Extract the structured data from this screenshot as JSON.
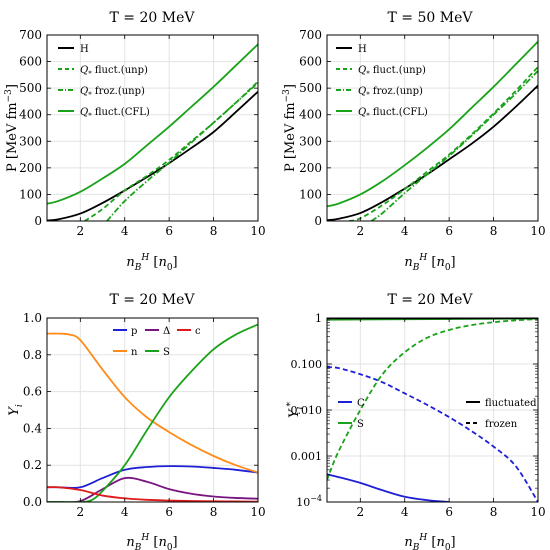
{
  "chart_data": [
    {
      "type": "line",
      "title": "T = 20 MeV",
      "xlabel": "n_B^H [n_0]",
      "ylabel": "P [MeV fm^-3]",
      "xlim": [
        0.5,
        10
      ],
      "ylim": [
        0,
        700
      ],
      "xticks": [
        2,
        4,
        6,
        8,
        10
      ],
      "yticks": [
        0,
        100,
        200,
        300,
        400,
        500,
        600,
        700
      ],
      "legend": "top-left",
      "grid": true,
      "series": [
        {
          "name": "H",
          "color": "#000000",
          "dash": "solid",
          "x": [
            0.5,
            1,
            2,
            3,
            4,
            5,
            6,
            7,
            8,
            9,
            10
          ],
          "y": [
            2,
            6,
            28,
            68,
            115,
            165,
            218,
            275,
            335,
            410,
            487
          ]
        },
        {
          "name": "Q fluct.(unp)",
          "color": "#1aa21a",
          "dash": "dash",
          "x": [
            2.2,
            3,
            4,
            5,
            6,
            7,
            8,
            9,
            10
          ],
          "y": [
            0,
            45,
            115,
            170,
            230,
            300,
            370,
            445,
            525
          ]
        },
        {
          "name": "Q froz.(unp)",
          "color": "#1aa21a",
          "dash": "dashdot",
          "x": [
            3.2,
            4,
            5,
            6,
            7,
            8,
            9,
            10
          ],
          "y": [
            0,
            75,
            150,
            220,
            295,
            370,
            445,
            520
          ]
        },
        {
          "name": "Q fluct.(CFL)",
          "color": "#1aa21a",
          "dash": "solid",
          "x": [
            0.5,
            1,
            2,
            3,
            4,
            5,
            6,
            7,
            8,
            9,
            10
          ],
          "y": [
            65,
            75,
            110,
            160,
            215,
            285,
            355,
            430,
            505,
            585,
            665
          ]
        }
      ]
    },
    {
      "type": "line",
      "title": "T = 50 MeV",
      "xlabel": "n_B^H [n_0]",
      "ylabel": "P [MeV fm^-3]",
      "xlim": [
        0.5,
        10
      ],
      "ylim": [
        0,
        700
      ],
      "xticks": [
        2,
        4,
        6,
        8,
        10
      ],
      "yticks": [
        0,
        100,
        200,
        300,
        400,
        500,
        600,
        700
      ],
      "legend": "top-left",
      "grid": true,
      "series": [
        {
          "name": "H",
          "color": "#000000",
          "dash": "solid",
          "x": [
            0.5,
            1,
            2,
            3,
            4,
            5,
            6,
            7,
            8,
            9,
            10
          ],
          "y": [
            3,
            8,
            30,
            72,
            122,
            175,
            232,
            290,
            355,
            430,
            510
          ]
        },
        {
          "name": "Q fluct.(unp)",
          "color": "#1aa21a",
          "dash": "dash",
          "x": [
            1.5,
            2,
            3,
            4,
            5,
            6,
            7,
            8,
            9,
            10
          ],
          "y": [
            0,
            10,
            60,
            120,
            185,
            250,
            325,
            405,
            490,
            580
          ]
        },
        {
          "name": "Q froz.(unp)",
          "color": "#1aa21a",
          "dash": "dashdot",
          "x": [
            2.5,
            3,
            4,
            5,
            6,
            7,
            8,
            9,
            10
          ],
          "y": [
            0,
            30,
            105,
            175,
            245,
            320,
            400,
            480,
            565
          ]
        },
        {
          "name": "Q fluct.(CFL)",
          "color": "#1aa21a",
          "dash": "solid",
          "x": [
            0.5,
            1,
            2,
            3,
            4,
            5,
            6,
            7,
            8,
            9,
            10
          ],
          "y": [
            55,
            65,
            100,
            150,
            210,
            275,
            345,
            425,
            505,
            590,
            675
          ]
        }
      ]
    },
    {
      "type": "line",
      "title": "T = 20 MeV",
      "xlabel": "n_B^H [n_0]",
      "ylabel": "Y_i",
      "xlim": [
        0.5,
        10
      ],
      "ylim": [
        0,
        1.0
      ],
      "xticks": [
        2,
        4,
        6,
        8,
        10
      ],
      "yticks": [
        0,
        0.2,
        0.4,
        0.6,
        0.8,
        1.0
      ],
      "legend": "top-center",
      "grid": true,
      "series": [
        {
          "name": "p",
          "color": "#1f1fd6",
          "dash": "solid",
          "x": [
            0.5,
            1,
            2,
            3,
            4,
            5,
            6,
            7,
            8,
            9,
            10
          ],
          "y": [
            0.08,
            0.08,
            0.08,
            0.13,
            0.175,
            0.19,
            0.195,
            0.193,
            0.185,
            0.175,
            0.16
          ]
        },
        {
          "name": "n",
          "color": "#ff8c1a",
          "dash": "solid",
          "x": [
            0.5,
            1,
            1.5,
            2,
            3,
            4,
            5,
            6,
            7,
            8,
            9,
            10
          ],
          "y": [
            0.915,
            0.915,
            0.91,
            0.88,
            0.72,
            0.57,
            0.46,
            0.38,
            0.31,
            0.25,
            0.2,
            0.16
          ]
        },
        {
          "name": "Δ",
          "color": "#7a1480",
          "dash": "solid",
          "x": [
            0.5,
            1,
            2,
            3,
            4,
            5,
            6,
            7,
            8,
            9,
            10
          ],
          "y": [
            0,
            0,
            0.005,
            0.07,
            0.13,
            0.11,
            0.07,
            0.045,
            0.03,
            0.022,
            0.018
          ]
        },
        {
          "name": "S",
          "color": "#1aa21a",
          "dash": "solid",
          "x": [
            0.5,
            1,
            2,
            2.5,
            3,
            4,
            5,
            6,
            7,
            8,
            9,
            10
          ],
          "y": [
            0,
            0,
            0,
            0.01,
            0.06,
            0.2,
            0.39,
            0.57,
            0.71,
            0.83,
            0.91,
            0.965
          ]
        },
        {
          "name": "c",
          "color": "#e01a1a",
          "dash": "solid",
          "x": [
            0.5,
            1,
            2,
            3,
            4,
            5,
            6,
            7,
            8,
            9,
            10
          ],
          "y": [
            0.08,
            0.08,
            0.065,
            0.035,
            0.02,
            0.012,
            0.008,
            0.005,
            0.004,
            0.003,
            0.002
          ]
        }
      ]
    },
    {
      "type": "line",
      "title": "T = 20 MeV",
      "xlabel": "n_B^H [n_0]",
      "ylabel": "Y_i^*",
      "xlim": [
        0.5,
        10
      ],
      "ylim": [
        0.0001,
        1
      ],
      "yscale": "log",
      "xticks": [
        2,
        4,
        6,
        8,
        10
      ],
      "ytick_labels": [
        "10^-4",
        "0.001",
        "0.010",
        "0.100",
        "1"
      ],
      "legend": "center-left and center-right",
      "grid": true,
      "series": [
        {
          "name": "C",
          "color": "#1f1fd6",
          "dash": "solid",
          "x": [
            0.5,
            1,
            2,
            3,
            4,
            5,
            6
          ],
          "y": [
            0.0004,
            0.00035,
            0.00026,
            0.00018,
            0.00013,
            0.00011,
            0.0001
          ]
        },
        {
          "color": "#1f1fd6",
          "dash": "dash",
          "x": [
            0.5,
            1,
            2,
            3,
            4,
            5,
            6,
            7,
            8,
            9,
            10
          ],
          "y": [
            0.085,
            0.082,
            0.06,
            0.04,
            0.023,
            0.013,
            0.007,
            0.0035,
            0.0016,
            0.0006,
            0.0001
          ]
        },
        {
          "name": "S",
          "color": "#1aa21a",
          "dash": "solid",
          "x": [
            0.5,
            10
          ],
          "y": [
            0.92,
            0.97
          ]
        },
        {
          "color": "#1aa21a",
          "dash": "dash",
          "x": [
            0.5,
            1,
            2,
            3,
            4,
            5,
            6,
            7,
            8,
            9,
            10
          ],
          "y": [
            0.0003,
            0.0012,
            0.01,
            0.06,
            0.18,
            0.37,
            0.55,
            0.7,
            0.81,
            0.89,
            0.95
          ]
        },
        {
          "color": "#000000",
          "dash": "solid",
          "x": [
            0.5,
            10
          ],
          "y": [
            0.98,
            0.99
          ]
        }
      ],
      "style_legend": [
        "fluctuated",
        "frozen"
      ]
    }
  ]
}
